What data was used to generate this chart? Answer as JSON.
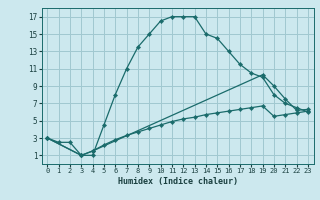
{
  "background_color": "#cce8ee",
  "grid_color": "#a0c8d0",
  "line_color": "#1a6b6b",
  "xlabel": "Humidex (Indice chaleur)",
  "xlim": [
    -0.5,
    23.5
  ],
  "ylim": [
    0,
    18
  ],
  "xticks": [
    0,
    1,
    2,
    3,
    4,
    5,
    6,
    7,
    8,
    9,
    10,
    11,
    12,
    13,
    14,
    15,
    16,
    17,
    18,
    19,
    20,
    21,
    22,
    23
  ],
  "yticks": [
    1,
    3,
    5,
    7,
    9,
    11,
    13,
    15,
    17
  ],
  "line1_x": [
    0,
    1,
    2,
    3,
    4,
    5,
    6,
    7,
    8,
    9,
    10,
    11,
    12,
    13,
    14,
    15,
    16,
    17,
    18,
    19,
    20,
    21,
    22,
    23
  ],
  "line1_y": [
    3,
    2.5,
    2.5,
    1,
    1,
    4.5,
    8,
    11,
    13.5,
    15,
    16.5,
    17,
    17,
    17,
    15,
    14.5,
    13,
    11.5,
    10.5,
    10,
    8,
    7,
    6.5,
    6
  ],
  "line2_x": [
    0,
    3,
    4,
    19,
    20,
    21,
    22,
    23
  ],
  "line2_y": [
    3,
    1,
    1.5,
    10.3,
    9,
    7.5,
    6.2,
    6.3
  ],
  "line3_x": [
    0,
    3,
    4,
    5,
    6,
    7,
    8,
    9,
    10,
    11,
    12,
    13,
    14,
    15,
    16,
    17,
    18,
    19,
    20,
    21,
    22,
    23
  ],
  "line3_y": [
    3,
    1,
    1.5,
    2.2,
    2.8,
    3.3,
    3.7,
    4.1,
    4.5,
    4.9,
    5.2,
    5.4,
    5.7,
    5.9,
    6.1,
    6.3,
    6.5,
    6.7,
    5.5,
    5.7,
    5.9,
    6.1
  ],
  "xlabel_fontsize": 6,
  "tick_fontsize": 5
}
